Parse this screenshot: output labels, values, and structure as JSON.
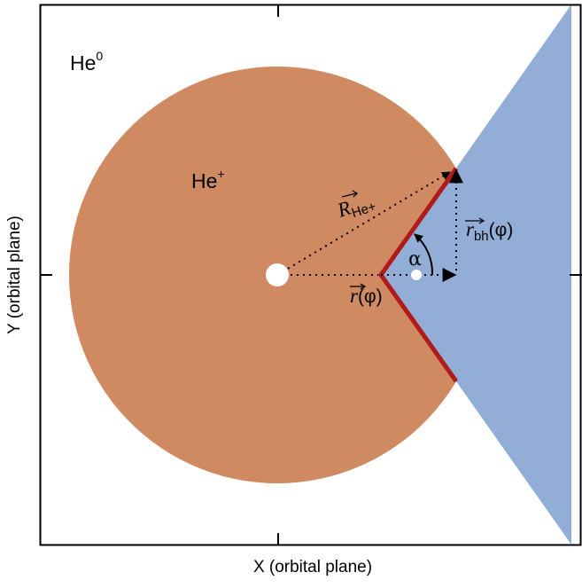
{
  "axes": {
    "x_label": "X (orbital plane)",
    "y_label": "Y (orbital plane)"
  },
  "regions": {
    "he0": {
      "base": "He",
      "superscript": "0"
    },
    "heplus": {
      "base": "He",
      "superscript": "+"
    }
  },
  "vectors": {
    "r_he": {
      "symbol": "R",
      "subscript": "He+"
    },
    "r_bh": {
      "symbol": "r",
      "subscript": "bh",
      "argument": "(φ)"
    },
    "r_phi": {
      "symbol": "r",
      "argument": "(φ)"
    }
  },
  "angle": {
    "symbol": "α"
  },
  "colors": {
    "he_plus_region": "#cf8a62",
    "shadow_cone": "#93aed6",
    "boundary": "#b01a1a",
    "frame": "#000000",
    "star_marker": "#ffffff"
  }
}
